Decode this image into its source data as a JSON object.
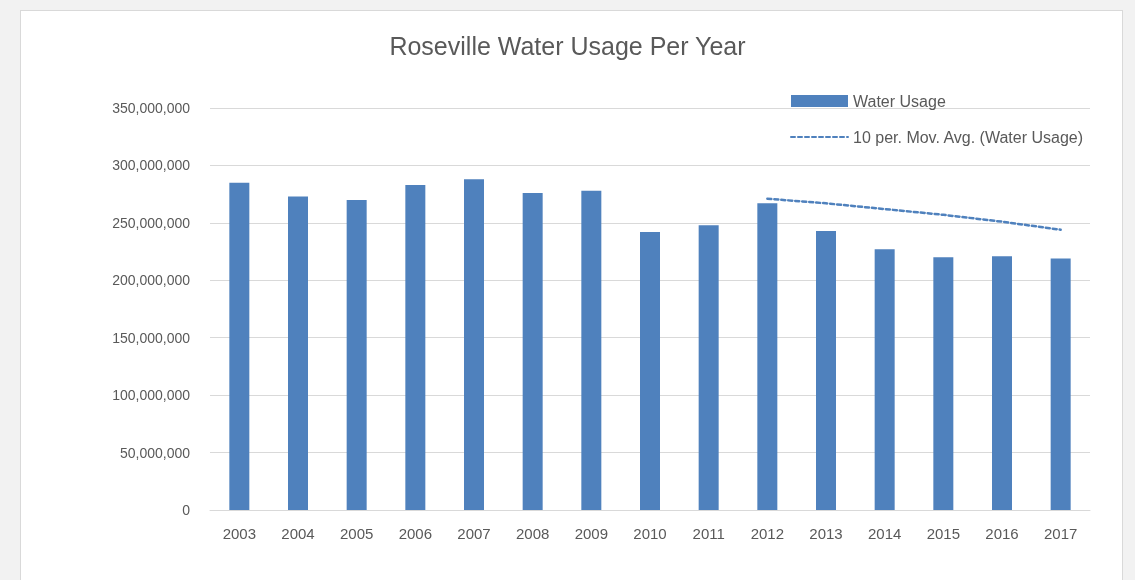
{
  "chart_data": {
    "type": "bar",
    "title": "Roseville Water Usage Per Year",
    "categories": [
      "2003",
      "2004",
      "2005",
      "2006",
      "2007",
      "2008",
      "2009",
      "2010",
      "2011",
      "2012",
      "2013",
      "2014",
      "2015",
      "2016",
      "2017"
    ],
    "series": [
      {
        "name": "Water Usage",
        "color": "#4f81bd",
        "values": [
          285000000,
          273000000,
          270000000,
          283000000,
          288000000,
          276000000,
          278000000,
          242000000,
          248000000,
          267000000,
          243000000,
          227000000,
          220000000,
          221000000,
          219000000
        ]
      },
      {
        "name": "10 per. Mov. Avg. (Water Usage)",
        "type": "line",
        "color": "#4f81bd",
        "line_style": "dashed",
        "marker": "none",
        "values": [
          null,
          null,
          null,
          null,
          null,
          null,
          null,
          null,
          null,
          271000000,
          267000000,
          262000000,
          257000000,
          251000000,
          244000000
        ]
      }
    ],
    "ylim": [
      0,
      350000000
    ],
    "yticks": [
      {
        "value": 0,
        "label": "0"
      },
      {
        "value": 50000000,
        "label": "50,000,000"
      },
      {
        "value": 100000000,
        "label": "100,000,000"
      },
      {
        "value": 150000000,
        "label": "150,000,000"
      },
      {
        "value": 200000000,
        "label": "200,000,000"
      },
      {
        "value": 250000000,
        "label": "250,000,000"
      },
      {
        "value": 300000000,
        "label": "300,000,000"
      },
      {
        "value": 350000000,
        "label": "350,000,000"
      }
    ],
    "grid": "y",
    "legend": "top right"
  }
}
